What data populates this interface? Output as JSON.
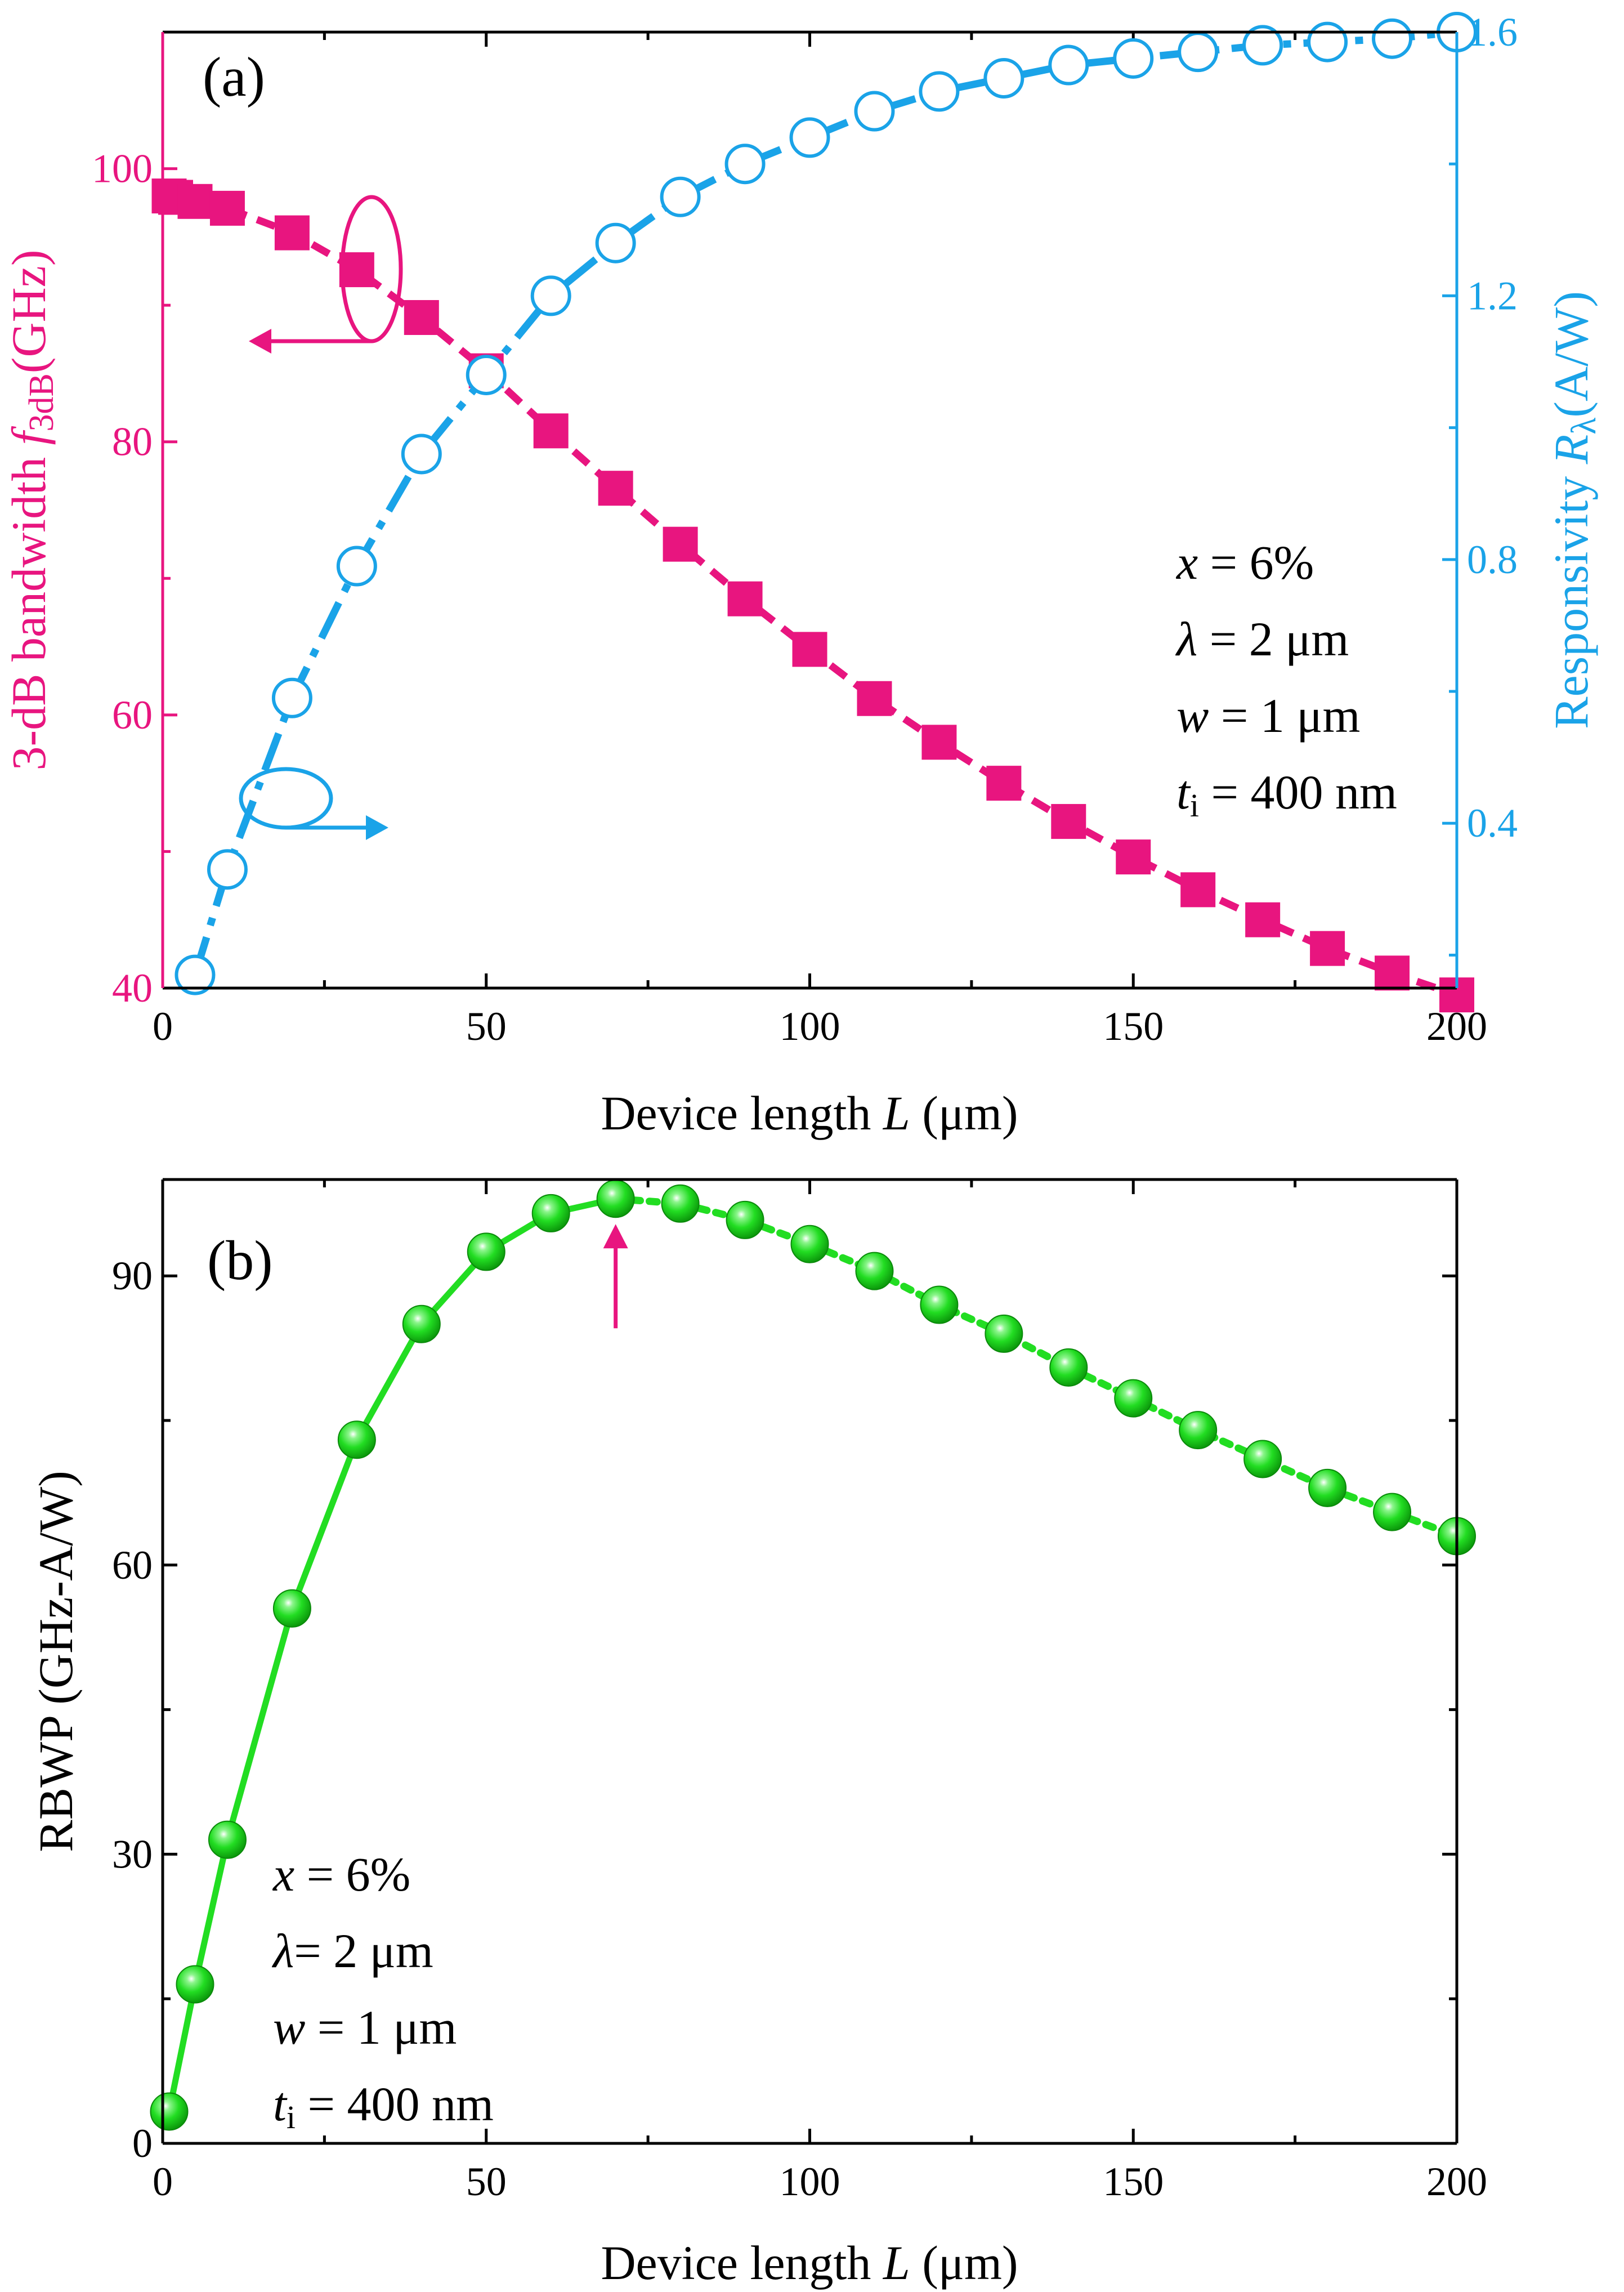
{
  "chart_data": [
    {
      "type": "line",
      "panel_label": "(a)",
      "x": [
        1,
        2,
        5,
        10,
        20,
        30,
        40,
        50,
        60,
        70,
        80,
        90,
        100,
        110,
        120,
        130,
        140,
        150,
        160,
        170,
        180,
        190,
        200
      ],
      "xlabel": {
        "prefix": "Device length ",
        "var": "L",
        "suffix": " (μm)"
      },
      "xlim": [
        0,
        200
      ],
      "xticks": [
        "0",
        "50",
        "100",
        "150",
        "200"
      ],
      "ylabel_left": {
        "prefix": "3-dB bandwidth ",
        "var": "f",
        "sub": "3dB",
        "suffix": "(GHz)"
      },
      "ylim_left": [
        40,
        110
      ],
      "yticks_left": [
        "40",
        "60",
        "80",
        "100"
      ],
      "ylabel_right": {
        "prefix": "Responsivity ",
        "var": "R",
        "sub": "λ",
        "suffix": "(A/W)"
      },
      "ylim_right": [
        0.15,
        1.6
      ],
      "yticks_right": [
        "0.4",
        "0.8",
        "1.2",
        "1.6"
      ],
      "series": [
        {
          "name": "3-dB bandwidth",
          "axis": "left",
          "marker": "filled-square",
          "color": "#e8157f",
          "x": [
            1,
            2,
            5,
            10,
            20,
            30,
            40,
            50,
            60,
            70,
            80,
            90,
            100,
            110,
            120,
            130,
            140,
            150,
            160,
            170,
            180,
            190,
            200
          ],
          "values": [
            98.0,
            97.9,
            97.6,
            97.1,
            95.3,
            92.6,
            89.1,
            85.2,
            80.8,
            76.6,
            72.5,
            68.5,
            64.8,
            61.2,
            58.0,
            55.0,
            52.2,
            49.6,
            47.2,
            45.0,
            42.9,
            41.1,
            39.5
          ]
        },
        {
          "name": "Responsivity",
          "axis": "right",
          "marker": "open-circle",
          "color": "#1aa3e8",
          "x": [
            5,
            10,
            20,
            30,
            40,
            50,
            60,
            70,
            80,
            90,
            100,
            110,
            120,
            130,
            140,
            150,
            160,
            170,
            180,
            190,
            200
          ],
          "values": [
            0.17,
            0.33,
            0.59,
            0.79,
            0.96,
            1.08,
            1.2,
            1.28,
            1.35,
            1.4,
            1.44,
            1.48,
            1.51,
            1.53,
            1.55,
            1.56,
            1.57,
            1.58,
            1.585,
            1.59,
            1.6
          ]
        }
      ],
      "annotations": [
        {
          "var": "x",
          "text": " = 6%"
        },
        {
          "var": "λ",
          "text": " = 2 μm"
        },
        {
          "var": "w",
          "text": " = 1 μm"
        },
        {
          "var": "t",
          "sub": "i",
          "text": " = 400 nm"
        }
      ]
    },
    {
      "type": "line",
      "panel_label": "(b)",
      "xlabel": {
        "prefix": "Device length ",
        "var": "L",
        "suffix": " (μm)"
      },
      "xlim": [
        0,
        200
      ],
      "xticks": [
        "0",
        "50",
        "100",
        "150",
        "200"
      ],
      "ylabel": "RBWP (GHz-A/W)",
      "ylim": [
        0,
        100
      ],
      "yticks": [
        "0",
        "30",
        "60",
        "90"
      ],
      "series": [
        {
          "name": "RBWP",
          "marker": "filled-sphere",
          "color": "#22dd22",
          "x": [
            1,
            5,
            10,
            20,
            30,
            40,
            50,
            60,
            70,
            80,
            90,
            100,
            110,
            120,
            130,
            140,
            150,
            160,
            170,
            180,
            190,
            200
          ],
          "values": [
            3.3,
            16.5,
            31.5,
            55.5,
            73.0,
            85.0,
            92.5,
            96.5,
            98.0,
            97.5,
            95.8,
            93.3,
            90.5,
            87.0,
            84.0,
            80.5,
            77.3,
            74.0,
            71.0,
            68.0,
            65.5,
            63.0
          ]
        }
      ],
      "peak_marker_x": 70,
      "annotations": [
        {
          "var": "x",
          "text": " = 6%"
        },
        {
          "var": "λ",
          "text": "= 2 μm"
        },
        {
          "var": "w",
          "text": " = 1 μm"
        },
        {
          "var": "t",
          "sub": "i",
          "text": " = 400 nm"
        }
      ]
    }
  ]
}
